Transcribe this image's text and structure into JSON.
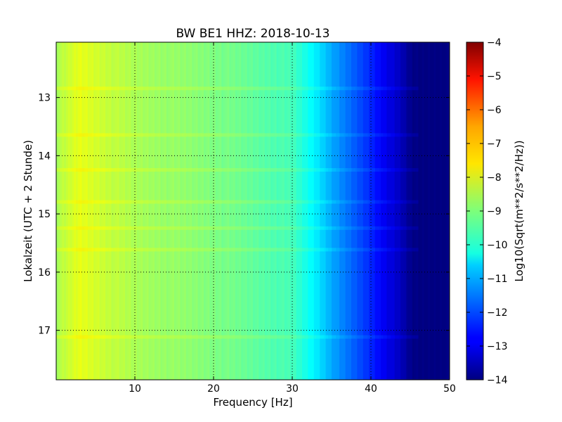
{
  "chart_data": [
    {
      "type": "heatmap",
      "title": "BW BE1 HHZ: 2018-10-13",
      "xlabel": "Frequency [Hz]",
      "ylabel": "Lokalzeit (UTC + 2 Stunde)",
      "xlim": [
        0,
        50
      ],
      "ylim_hours_local": [
        12.05,
        17.85
      ],
      "y_axis_inverted": true,
      "x_ticks": [
        10,
        20,
        30,
        40,
        50
      ],
      "x_tick_labels": [
        "10",
        "20",
        "30",
        "40",
        "50"
      ],
      "y_ticks": [
        13,
        14,
        15,
        16,
        17
      ],
      "y_tick_labels": [
        "13",
        "14",
        "15",
        "16",
        "17"
      ],
      "grid": true,
      "colormap": "jet",
      "description_values_log10": {
        "frequency_hz": [
          0,
          3,
          10,
          20,
          30,
          33,
          36,
          40,
          44,
          45,
          46,
          50
        ],
        "level": [
          -8.6,
          -8.0,
          -8.6,
          -9.0,
          -9.6,
          -10.4,
          -11.4,
          -12.4,
          -13.5,
          -13.9,
          -14.0,
          -14.0
        ]
      },
      "bright_bands_local_hours": [
        12.85,
        13.65,
        14.25,
        14.8,
        15.25,
        15.62,
        17.12
      ],
      "colorbar": {
        "label": "Log10(Sqrt(m**2/s**2/Hz))",
        "min": -14,
        "max": -4,
        "ticks": [
          -4,
          -5,
          -6,
          -7,
          -8,
          -9,
          -10,
          -11,
          -12,
          -13,
          -14
        ],
        "tick_labels": [
          "−4",
          "−5",
          "−6",
          "−7",
          "−8",
          "−9",
          "−10",
          "−11",
          "−12",
          "−13",
          "−14"
        ]
      }
    }
  ]
}
